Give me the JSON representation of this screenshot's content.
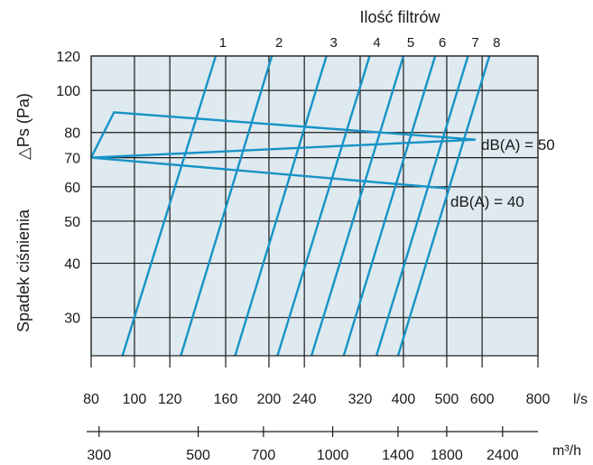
{
  "chart_data": {
    "type": "line",
    "title": "Ilość filtrów",
    "ylabel": "Spadek ciśnienia",
    "ylabel_symbol": "△Ps (Pa)",
    "x_unit_primary": "l/s",
    "x_unit_secondary": "m³/h",
    "x_scale": "log",
    "y_scale": "log",
    "xlim": [
      80,
      800
    ],
    "ylim": [
      24.5,
      120
    ],
    "grid": true,
    "y_ticks": [
      30,
      40,
      50,
      60,
      70,
      80,
      100,
      120
    ],
    "x_ticks": [
      80,
      100,
      120,
      160,
      200,
      240,
      320,
      400,
      500,
      600,
      800
    ],
    "x_ticks_m3h": [
      {
        "label": "300",
        "value": 83.33
      },
      {
        "label": "500",
        "value": 138.9
      },
      {
        "label": "700",
        "value": 194.4
      },
      {
        "label": "1000",
        "value": 277.8
      },
      {
        "label": "1400",
        "value": 388.9
      },
      {
        "label": "1800",
        "value": 500
      },
      {
        "label": "2400",
        "value": 666.7
      }
    ],
    "series": [
      {
        "name": "1",
        "points": [
          [
            94,
            24.5
          ],
          [
            152,
            120
          ]
        ]
      },
      {
        "name": "2",
        "points": [
          [
            127,
            24.5
          ],
          [
            203,
            120
          ]
        ]
      },
      {
        "name": "3",
        "points": [
          [
            168,
            24.5
          ],
          [
            269,
            120
          ]
        ]
      },
      {
        "name": "4",
        "points": [
          [
            209,
            24.5
          ],
          [
            336,
            120
          ]
        ]
      },
      {
        "name": "5",
        "points": [
          [
            249,
            24.5
          ],
          [
            400,
            120
          ]
        ]
      },
      {
        "name": "6",
        "points": [
          [
            294,
            24.5
          ],
          [
            471,
            120
          ]
        ]
      },
      {
        "name": "7",
        "points": [
          [
            348,
            24.5
          ],
          [
            558,
            120
          ]
        ]
      },
      {
        "name": "8",
        "points": [
          [
            389,
            24.5
          ],
          [
            623,
            120
          ]
        ]
      }
    ],
    "level_lines": [
      {
        "label": "dB(A) = 50",
        "points": [
          [
            80,
            70
          ],
          [
            90,
            89
          ],
          [
            580,
            77
          ],
          [
            80,
            70
          ]
        ]
      },
      {
        "label": "dB(A) = 40",
        "points": [
          [
            80,
            70
          ],
          [
            500,
            59.5
          ]
        ]
      }
    ]
  },
  "labels": {
    "db50": "dB(A) = 50",
    "db40": "dB(A) = 40"
  }
}
